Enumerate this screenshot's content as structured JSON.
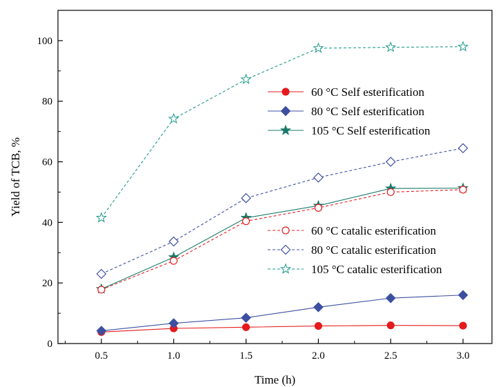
{
  "chart_data": {
    "type": "line",
    "xlabel": "Time (h)",
    "ylabel": "Yield of TCB, %",
    "xlim": [
      0.2,
      3.2
    ],
    "ylim": [
      0,
      110
    ],
    "x_ticks": [
      "0.5",
      "1.0",
      "1.5",
      "2.0",
      "2.5",
      "3.0"
    ],
    "y_ticks": [
      "0",
      "20",
      "40",
      "60",
      "80",
      "100"
    ],
    "x": [
      0.5,
      1.0,
      1.5,
      2.0,
      2.5,
      3.0
    ],
    "grid": false,
    "series": [
      {
        "name": "60 °C Self esterification",
        "values": [
          3.8,
          5.0,
          5.4,
          5.8,
          6.0,
          5.9
        ],
        "color": "#e41a1c",
        "marker": "circle",
        "filled": true,
        "dashed": false
      },
      {
        "name": "80 °C Self esterification",
        "values": [
          4.2,
          6.7,
          8.5,
          12.0,
          15.0,
          16.0
        ],
        "color": "#3d4fa0",
        "marker": "diamond",
        "filled": true,
        "dashed": false
      },
      {
        "name": "105 °C Self esterification",
        "values": [
          18.0,
          28.5,
          41.5,
          45.5,
          51.2,
          51.3
        ],
        "color": "#1a7a6a",
        "marker": "star",
        "filled": true,
        "dashed": false
      },
      {
        "name": "60 °C catalic esterification",
        "values": [
          17.8,
          27.3,
          40.4,
          44.8,
          50.0,
          50.8
        ],
        "color": "#e41a1c",
        "marker": "circle",
        "filled": false,
        "dashed": true
      },
      {
        "name": "80 °C catalic esterification",
        "values": [
          23.0,
          33.7,
          48.0,
          54.8,
          60.0,
          64.5
        ],
        "color": "#3d4fa0",
        "marker": "diamond",
        "filled": false,
        "dashed": true
      },
      {
        "name": "105 °C catalic esterification",
        "values": [
          41.5,
          74.2,
          87.2,
          97.5,
          97.8,
          98.0
        ],
        "color": "#1a9a8a",
        "marker": "star",
        "filled": false,
        "dashed": true
      }
    ],
    "legends": [
      {
        "placement": "upper-middle",
        "series_indices": [
          0,
          1,
          2
        ]
      },
      {
        "placement": "middle-right",
        "series_indices": [
          3,
          4,
          5
        ]
      }
    ]
  }
}
